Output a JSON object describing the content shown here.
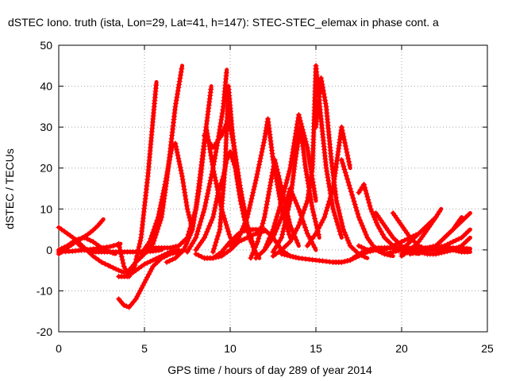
{
  "chart_data": {
    "type": "scatter",
    "title": "dSTEC Iono. truth (ista, Lon=29, Lat=41, h=147): STEC-STEC_elemax in phase cont. a",
    "xlabel": "GPS time / hours of day 289 of year 2014",
    "ylabel": "dSTEC  / TECUs",
    "xlim": [
      0,
      25
    ],
    "ylim": [
      -20,
      50
    ],
    "xticks": [
      0,
      5,
      10,
      15,
      20,
      25
    ],
    "yticks": [
      -20,
      -10,
      0,
      10,
      20,
      30,
      40,
      50
    ],
    "grid": true,
    "marker": "+",
    "color": "#ff0000",
    "series": [
      {
        "x": [
          0.0,
          0.5,
          1.0,
          1.5,
          2.0,
          2.5,
          2.9,
          3.0,
          3.5,
          3.8
        ],
        "y": [
          5.5,
          4,
          2.5,
          0.5,
          -1.5,
          -3,
          -3.8,
          -4,
          -5,
          -5.5
        ]
      },
      {
        "x": [
          0.0,
          0.3,
          0.6,
          1.0,
          1.4,
          1.7,
          2.0,
          2.3,
          2.6
        ],
        "y": [
          -1,
          0,
          0.8,
          2,
          3,
          3.8,
          4.8,
          6,
          7.5
        ]
      },
      {
        "x": [
          0.0,
          0.5,
          1.0,
          1.5,
          2.0,
          2.5,
          3.0,
          3.3
        ],
        "y": [
          0,
          1,
          2.5,
          3,
          2,
          0.5,
          -0.5,
          -1
        ]
      },
      {
        "x": [
          0.0,
          0.8,
          1.5,
          2.2,
          3.0,
          3.6
        ],
        "y": [
          -0.5,
          -0.3,
          0,
          0.3,
          0.8,
          1.5
        ]
      },
      {
        "x": [
          1.0,
          1.5,
          2.0,
          2.5,
          3.0,
          3.5,
          4.0,
          4.5,
          5.0,
          5.5,
          6.0
        ],
        "y": [
          2,
          0,
          -0.5,
          -0.5,
          -0.5,
          -0.5,
          -0.5,
          -0.5,
          -0.5,
          -0.3,
          0
        ]
      },
      {
        "x": [
          3.5,
          3.8,
          4.1,
          4.4,
          4.8,
          5.2,
          5.5,
          5.7
        ],
        "y": [
          1.5,
          -4,
          -6.5,
          -4.5,
          3,
          18,
          32,
          41
        ]
      },
      {
        "x": [
          3.5,
          4.0,
          4.5,
          5.0,
          5.5,
          6.0,
          6.5,
          7.0
        ],
        "y": [
          -6.5,
          -6.5,
          -5,
          -3.5,
          -2.5,
          -1.5,
          -0.5,
          0
        ]
      },
      {
        "x": [
          3.5,
          3.8,
          4.1,
          4.5,
          5.0,
          5.5,
          6.0,
          6.5,
          7.0,
          7.3
        ],
        "y": [
          -12,
          -13.5,
          -14,
          -12,
          -8,
          -4,
          -2,
          -1,
          -0.5,
          0
        ]
      },
      {
        "x": [
          4.0,
          4.5,
          5.0,
          5.5,
          6.0,
          6.3,
          6.8,
          7.2
        ],
        "y": [
          -5.5,
          -3,
          -1,
          1.5,
          8,
          17,
          35,
          45
        ]
      },
      {
        "x": [
          4.8,
          5.3,
          5.8,
          6.2,
          6.6,
          6.8,
          7.2,
          7.5,
          7.8
        ],
        "y": [
          -1,
          2,
          8,
          16,
          25,
          26,
          18,
          10,
          5
        ]
      },
      {
        "x": [
          5.0,
          5.5,
          6.0,
          6.5,
          7.0,
          7.5,
          8.0,
          8.3,
          8.6,
          8.9
        ],
        "y": [
          0,
          0.5,
          0.5,
          0.5,
          1,
          3,
          10,
          20,
          30,
          40
        ]
      },
      {
        "x": [
          6.3,
          6.8,
          7.3,
          7.8,
          8.2,
          8.6,
          9.0,
          9.5,
          10.0
        ],
        "y": [
          -3,
          -2,
          0,
          5,
          15,
          30,
          20,
          10,
          3
        ]
      },
      {
        "x": [
          7.5,
          8.0,
          8.5,
          9.0,
          9.3,
          9.6,
          9.8
        ],
        "y": [
          -0.5,
          3,
          10,
          20,
          27,
          35,
          44
        ]
      },
      {
        "x": [
          8.0,
          8.5,
          9.0,
          9.3,
          9.6,
          9.8,
          10.0,
          10.3,
          10.6,
          11.0,
          11.4,
          11.7
        ],
        "y": [
          0,
          3,
          8,
          14,
          18,
          22,
          24,
          20,
          12,
          5,
          0,
          -2
        ]
      },
      {
        "x": [
          9.0,
          9.4,
          9.7,
          9.9,
          10.1,
          10.4,
          10.8,
          11.2
        ],
        "y": [
          -0.5,
          5,
          20,
          40,
          30,
          18,
          8,
          2
        ]
      },
      {
        "x": [
          8.5,
          9.0,
          9.5,
          9.9,
          10.2,
          10.6,
          11.0,
          11.5
        ],
        "y": [
          28,
          25,
          28,
          32,
          26,
          15,
          6,
          -1
        ]
      },
      {
        "x": [
          8.5,
          9.0,
          9.5,
          10.0,
          10.5,
          11.0,
          11.5,
          12.0
        ],
        "y": [
          -2,
          -2,
          -1.5,
          0,
          2,
          3,
          4,
          4.5
        ]
      },
      {
        "x": [
          8.0,
          8.5,
          9.0,
          9.5,
          10.0,
          10.5,
          11.0,
          11.5,
          12.0,
          12.5,
          13.0,
          13.5,
          14.0
        ],
        "y": [
          -1,
          -2,
          -2,
          -0.5,
          2,
          4,
          5,
          5,
          5,
          3,
          0,
          -1.5,
          -2
        ]
      },
      {
        "x": [
          10.0,
          10.5,
          11.0,
          11.5,
          12.0,
          12.2,
          12.5,
          13.0,
          13.5
        ],
        "y": [
          1,
          3,
          8,
          17,
          27,
          32,
          22,
          10,
          3
        ]
      },
      {
        "x": [
          11.2,
          11.6,
          12.0,
          12.3,
          12.6,
          13.0,
          13.5,
          14.0
        ],
        "y": [
          -2,
          2,
          8,
          15,
          22,
          15,
          6,
          1
        ]
      },
      {
        "x": [
          11.5,
          12.0,
          12.5,
          13.0,
          13.5,
          14.0,
          14.5,
          15.0
        ],
        "y": [
          -2,
          0,
          3,
          8,
          15,
          10,
          4,
          0
        ]
      },
      {
        "x": [
          12.0,
          12.5,
          13.0,
          13.5,
          14.0,
          14.5,
          15.0
        ],
        "y": [
          0,
          5,
          12,
          20,
          33,
          25,
          12
        ]
      },
      {
        "x": [
          12.5,
          13.0,
          13.5,
          13.8,
          14.1,
          14.4,
          14.8,
          15.2
        ],
        "y": [
          -0.5,
          3,
          12,
          22,
          30,
          20,
          10,
          3
        ]
      },
      {
        "x": [
          12.5,
          13.0,
          13.5,
          14.0,
          14.5,
          14.8,
          15.0,
          15.3,
          15.6,
          16.0,
          16.5
        ],
        "y": [
          -1.5,
          0,
          2,
          6,
          12,
          20,
          45,
          32,
          20,
          10,
          3
        ]
      },
      {
        "x": [
          14.5,
          15.0,
          15.5,
          16.0,
          16.5,
          17.0
        ],
        "y": [
          1,
          4,
          8,
          15,
          30,
          20
        ]
      },
      {
        "x": [
          15.0,
          15.3,
          15.6,
          15.9,
          16.2,
          16.6,
          17.0,
          17.5,
          18.0
        ],
        "y": [
          30,
          42,
          35,
          22,
          12,
          5,
          1,
          -1,
          -2
        ]
      },
      {
        "x": [
          13.0,
          14.0,
          15.0,
          16.0,
          16.5,
          17.0,
          17.5,
          18.0,
          18.5,
          19.0,
          19.5,
          20.0,
          20.5,
          21.0
        ],
        "y": [
          -1,
          -2,
          -2.5,
          -3,
          -3,
          -2.5,
          -1,
          0,
          0.5,
          0.5,
          0.5,
          0,
          -0.5,
          -1
        ]
      },
      {
        "x": [
          16.0,
          16.5,
          17.0,
          17.5,
          18.0,
          18.5,
          19.0,
          19.5,
          20.0,
          21.0,
          22.0,
          23.0,
          24.0
        ],
        "y": [
          -3,
          -3,
          -2.5,
          -1.5,
          -0.5,
          0,
          0.5,
          0.5,
          0.5,
          0.5,
          0.5,
          0.5,
          0.3
        ]
      },
      {
        "x": [
          16.5,
          17.0,
          17.5,
          18.0,
          18.5,
          19.0,
          19.5
        ],
        "y": [
          22,
          15,
          8,
          3,
          0,
          -1,
          -1.5
        ]
      },
      {
        "x": [
          17.5,
          17.8,
          18.2,
          18.6,
          19.0,
          19.5,
          20.0
        ],
        "y": [
          14,
          16,
          10,
          6,
          3,
          1,
          0
        ]
      },
      {
        "x": [
          17.5,
          18.0,
          18.5,
          19.0,
          19.5,
          20.0,
          20.5,
          21.0
        ],
        "y": [
          1,
          0,
          0,
          0,
          1,
          2,
          3,
          4
        ]
      },
      {
        "x": [
          18.5,
          19.0,
          19.5,
          20.0,
          20.5,
          21.0,
          21.5,
          22.0
        ],
        "y": [
          9,
          6,
          3,
          1,
          0,
          -0.5,
          -1,
          -1
        ]
      },
      {
        "x": [
          19.5,
          20.0,
          20.5,
          21.0,
          21.5,
          22.0,
          22.5
        ],
        "y": [
          9,
          6,
          3,
          1,
          0,
          0,
          0
        ]
      },
      {
        "x": [
          19.0,
          19.5,
          20.0,
          20.5,
          21.0,
          21.5,
          22.0
        ],
        "y": [
          -1,
          -0.5,
          0,
          2,
          4,
          6,
          8
        ]
      },
      {
        "x": [
          20.0,
          20.5,
          21.0,
          21.5,
          22.0,
          22.3
        ],
        "y": [
          -1.5,
          0,
          2,
          5,
          8,
          10
        ]
      },
      {
        "x": [
          20.5,
          21.0,
          21.5,
          22.0,
          22.5,
          23.0,
          23.5,
          24.0
        ],
        "y": [
          0,
          0,
          0.5,
          1,
          3,
          5,
          7,
          9
        ]
      },
      {
        "x": [
          20.5,
          21.0,
          21.5,
          22.0,
          22.5,
          23.0,
          23.5
        ],
        "y": [
          -1,
          -0.5,
          0,
          1,
          3,
          5,
          8
        ]
      },
      {
        "x": [
          20.0,
          21.0,
          22.0,
          22.5,
          23.0,
          23.5,
          24.0
        ],
        "y": [
          -1,
          0,
          0.5,
          1,
          2,
          3,
          5
        ]
      },
      {
        "x": [
          21.5,
          22.0,
          22.5,
          23.0,
          23.5,
          24.0
        ],
        "y": [
          -1,
          -1,
          -0.5,
          0,
          1,
          3
        ]
      },
      {
        "x": [
          22.0,
          22.5,
          23.0,
          23.5,
          24.0
        ],
        "y": [
          1,
          0.5,
          0,
          -0.5,
          -0.5
        ]
      }
    ]
  }
}
